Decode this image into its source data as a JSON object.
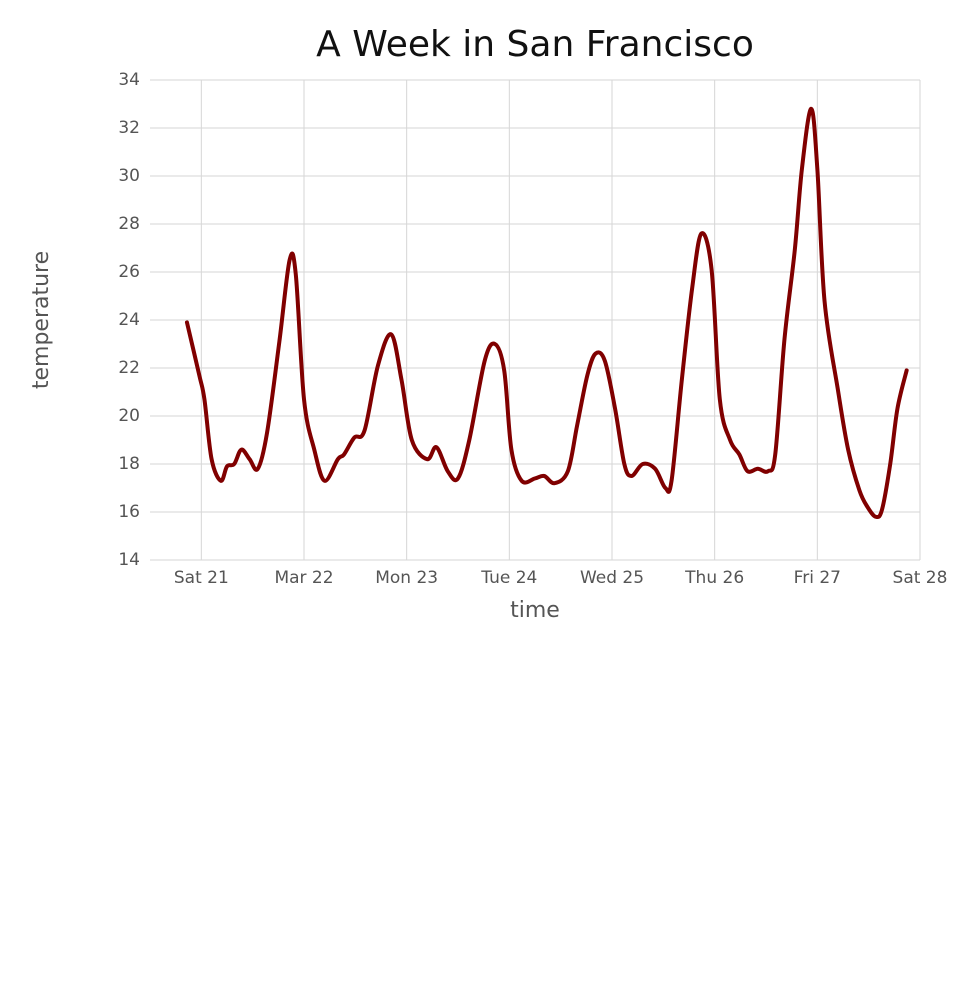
{
  "chart_data": {
    "type": "line",
    "title": "A Week in San Francisco",
    "x_label": "time",
    "y_label": "temperature",
    "x": [
      20.86,
      20.98,
      21.03,
      21.1,
      21.19,
      21.25,
      21.32,
      21.39,
      21.47,
      21.55,
      21.64,
      21.76,
      21.86,
      21.92,
      22.0,
      22.1,
      22.2,
      22.33,
      22.39,
      22.49,
      22.59,
      22.72,
      22.85,
      22.95,
      23.05,
      23.2,
      23.29,
      23.4,
      23.5,
      23.61,
      23.76,
      23.86,
      23.95,
      24.02,
      24.12,
      24.25,
      24.34,
      24.44,
      24.57,
      24.66,
      24.76,
      24.84,
      24.93,
      25.03,
      25.12,
      25.19,
      25.3,
      25.42,
      25.52,
      25.58,
      25.68,
      25.78,
      25.87,
      25.97,
      26.05,
      26.15,
      26.24,
      26.32,
      26.42,
      26.52,
      26.59,
      26.68,
      26.78,
      26.85,
      26.94,
      27.0,
      27.07,
      27.2,
      27.3,
      27.41,
      27.49,
      27.57,
      27.63,
      27.71,
      27.78,
      27.87
    ],
    "values": [
      23.9,
      21.7,
      20.7,
      18.2,
      17.3,
      17.9,
      18.0,
      18.6,
      18.2,
      17.8,
      19.3,
      23.1,
      26.5,
      25.9,
      20.7,
      18.6,
      17.3,
      18.2,
      18.4,
      19.1,
      19.4,
      22.1,
      23.4,
      21.5,
      19.0,
      18.2,
      18.7,
      17.7,
      17.4,
      19.0,
      22.3,
      23.0,
      21.9,
      18.6,
      17.3,
      17.4,
      17.5,
      17.2,
      17.7,
      19.6,
      21.7,
      22.6,
      22.3,
      20.3,
      18.0,
      17.5,
      18.0,
      17.8,
      17.0,
      17.3,
      21.5,
      25.3,
      27.6,
      26.1,
      20.7,
      19.0,
      18.4,
      17.7,
      17.8,
      17.7,
      18.4,
      23.2,
      26.9,
      30.3,
      32.8,
      30.3,
      24.8,
      21.1,
      18.6,
      16.9,
      16.2,
      15.8,
      16.1,
      18.0,
      20.3,
      21.9
    ],
    "color": "#800000",
    "xlim": [
      20.5,
      28
    ],
    "xticks": [
      {
        "value": 21,
        "label": "Sat 21"
      },
      {
        "value": 22,
        "label": "Mar 22"
      },
      {
        "value": 23,
        "label": "Mon 23"
      },
      {
        "value": 24,
        "label": "Tue 24"
      },
      {
        "value": 25,
        "label": "Wed 25"
      },
      {
        "value": 26,
        "label": "Thu 26"
      },
      {
        "value": 27,
        "label": "Fri 27"
      },
      {
        "value": 28,
        "label": "Sat 28"
      }
    ],
    "ylim": [
      14,
      34
    ],
    "yticks": [
      14,
      16,
      18,
      20,
      22,
      24,
      26,
      28,
      30,
      32,
      34
    ],
    "grid": true
  }
}
